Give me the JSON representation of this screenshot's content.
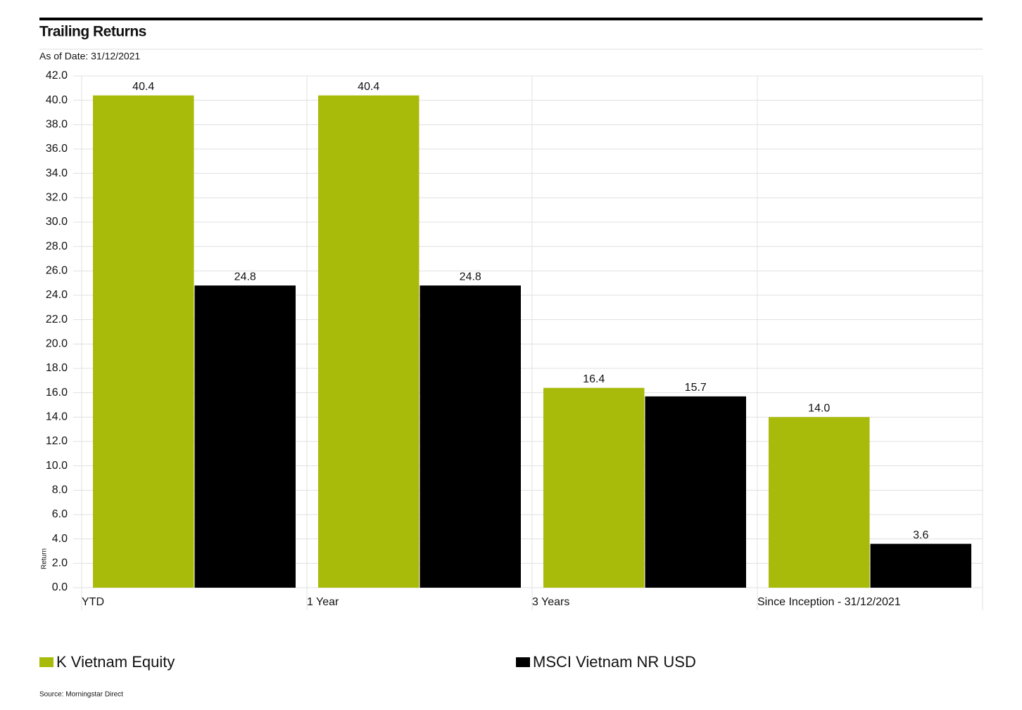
{
  "chart_data": {
    "type": "bar",
    "title": "Trailing Returns",
    "subtitle": "As of Date: 31/12/2021",
    "y_label": "Return",
    "source": "Source: Morningstar Direct",
    "categories": [
      "YTD",
      "1 Year",
      "3 Years",
      "Since Inception - 31/12/2021"
    ],
    "series": [
      {
        "name": "K Vietnam Equity",
        "color": "#a8bb0a",
        "values": [
          40.4,
          40.4,
          16.4,
          14.0
        ],
        "value_labels": [
          "40.4",
          "40.4",
          "16.4",
          "14.0"
        ]
      },
      {
        "name": "MSCI Vietnam NR USD",
        "color": "#000000",
        "values": [
          24.8,
          24.8,
          15.7,
          3.6
        ],
        "value_labels": [
          "24.8",
          "24.8",
          "15.7",
          "3.6"
        ]
      }
    ],
    "ylim": [
      0,
      42
    ],
    "yticks": [
      {
        "value": 0,
        "label": "0.0"
      },
      {
        "value": 2,
        "label": "2.0"
      },
      {
        "value": 4,
        "label": "4.0"
      },
      {
        "value": 6,
        "label": "6.0"
      },
      {
        "value": 8,
        "label": "8.0"
      },
      {
        "value": 10,
        "label": "10.0"
      },
      {
        "value": 12,
        "label": "12.0"
      },
      {
        "value": 14,
        "label": "14.0"
      },
      {
        "value": 16,
        "label": "16.0"
      },
      {
        "value": 18,
        "label": "18.0"
      },
      {
        "value": 20,
        "label": "20.0"
      },
      {
        "value": 22,
        "label": "22.0"
      },
      {
        "value": 24,
        "label": "24.0"
      },
      {
        "value": 26,
        "label": "26.0"
      },
      {
        "value": 28,
        "label": "28.0"
      },
      {
        "value": 30,
        "label": "30.0"
      },
      {
        "value": 32,
        "label": "32.0"
      },
      {
        "value": 34,
        "label": "34.0"
      },
      {
        "value": 36,
        "label": "36.0"
      },
      {
        "value": 38,
        "label": "38.0"
      },
      {
        "value": 40,
        "label": "40.0"
      },
      {
        "value": 42,
        "label": "42.0"
      }
    ],
    "grid": true
  }
}
